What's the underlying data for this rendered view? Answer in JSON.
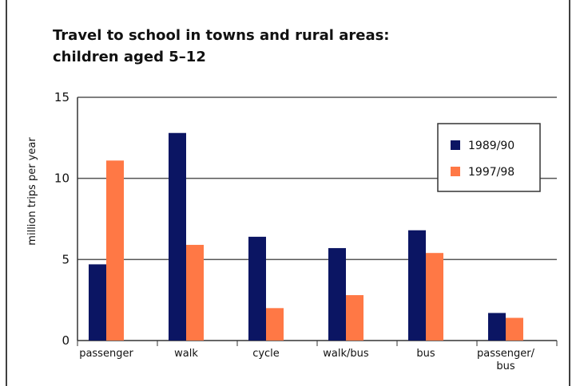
{
  "chart_data": {
    "type": "bar",
    "title": "Travel to school in towns and rural areas:\nchildren aged 5–12",
    "y_label": "million trips per year",
    "categories": [
      "passenger",
      "walk",
      "cycle",
      "walk/bus",
      "bus",
      "passenger/\nbus"
    ],
    "series": [
      {
        "name": "1989/90",
        "color": "#0b1563",
        "values": [
          4.7,
          12.8,
          6.4,
          5.7,
          6.8,
          1.7
        ]
      },
      {
        "name": "1997/98",
        "color": "#ff7845",
        "values": [
          11.1,
          5.9,
          2.0,
          2.8,
          5.4,
          1.4
        ]
      }
    ],
    "ylim": [
      0,
      15
    ],
    "yticks": [
      0,
      5,
      10,
      15
    ],
    "grid": true,
    "legend": "upper right"
  }
}
